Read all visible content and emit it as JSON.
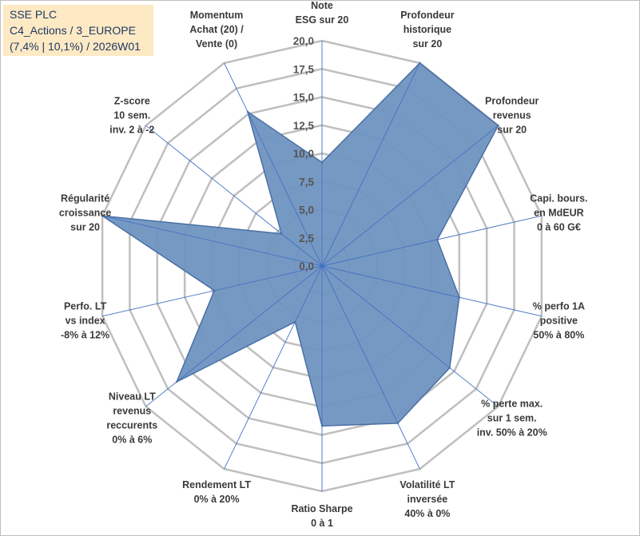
{
  "title_box": {
    "line1": "SSE PLC",
    "line2": "C4_Actions / 3_EUROPE",
    "line3": "(7,4% | 10,1%) / 2026W01"
  },
  "chart_data": {
    "type": "radar",
    "rmax": 20,
    "tick_labels": [
      "0,0",
      "2,5",
      "5,0",
      "7,5",
      "10,0",
      "12,5",
      "15,0",
      "17,5",
      "20,0"
    ],
    "axes": [
      {
        "label": [
          "Note",
          "ESG sur 20"
        ],
        "value": 9.2
      },
      {
        "label": [
          "Profondeur",
          "historique",
          "sur 20"
        ],
        "value": 20
      },
      {
        "label": [
          "Profondeur",
          "revenus",
          "sur 20"
        ],
        "value": 20
      },
      {
        "label": [
          "Capi. bours.",
          "en MdEUR",
          "0 à 60 G€"
        ],
        "value": 10.5
      },
      {
        "label": [
          "% perfo 1A",
          "positive",
          "50% à 80%"
        ],
        "value": 12.5
      },
      {
        "label": [
          "% perte max.",
          "sur 1 sem.",
          "inv. 50% à 20%"
        ],
        "value": 14.5
      },
      {
        "label": [
          "Volatilité LT",
          "inversée",
          "40% à 0%"
        ],
        "value": 15.5
      },
      {
        "label": [
          "Ratio Sharpe",
          "0 à 1"
        ],
        "value": 14.2
      },
      {
        "label": [
          "Rendement LT",
          "0% à 20%"
        ],
        "value": 5.5
      },
      {
        "label": [
          "Niveau LT",
          "revenus",
          "reccurents",
          "0% à 6%"
        ],
        "value": 16.5
      },
      {
        "label": [
          "Perfo. LT",
          "vs index",
          "-8% à 12%"
        ],
        "value": 9.8
      },
      {
        "label": [
          "Régularité",
          "croissance",
          "sur 20"
        ],
        "value": 20
      },
      {
        "label": [
          "Z-score",
          "10 sem.",
          "inv. 2 à -2"
        ],
        "value": 4.6
      },
      {
        "label": [
          "Momentum",
          "Achat (20) /",
          "Vente (0)"
        ],
        "value": 15.2
      }
    ],
    "colors": {
      "fill": "#6f93c0",
      "stroke": "#4a6fa5",
      "grid": "#bfbfbf",
      "spoke": "#4472c4"
    }
  }
}
